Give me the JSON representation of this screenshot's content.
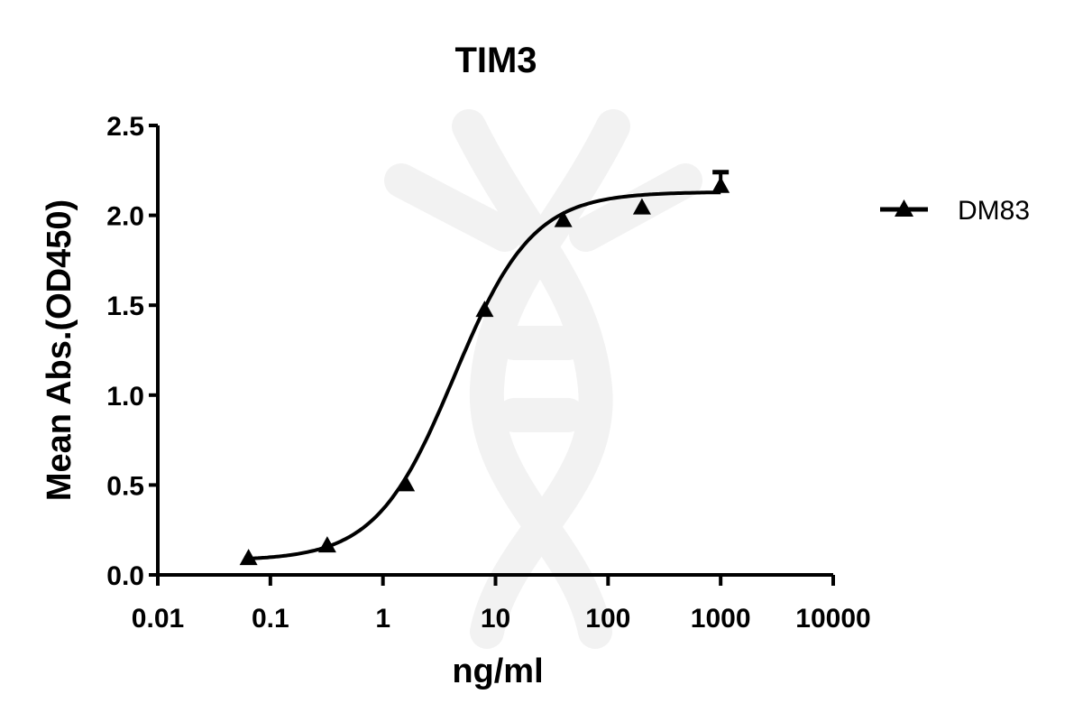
{
  "chart_data": {
    "type": "line",
    "title": "TIM3",
    "xlabel": "ng/ml",
    "ylabel": "Mean Abs.(OD450)",
    "xscale": "log",
    "xlim": [
      0.01,
      10000
    ],
    "ylim": [
      0,
      2.5
    ],
    "xticks": [
      "0.01",
      "0.1",
      "1",
      "10",
      "100",
      "1000",
      "10000"
    ],
    "yticks": [
      "0.0",
      "0.5",
      "1.0",
      "1.5",
      "2.0",
      "2.5"
    ],
    "grid": false,
    "legend_position": "right",
    "series": [
      {
        "name": "DM83",
        "marker": "triangle",
        "x": [
          0.064,
          0.32,
          1.6,
          8,
          40,
          200,
          1000
        ],
        "y": [
          0.09,
          0.16,
          0.5,
          1.47,
          1.97,
          2.04,
          2.16
        ],
        "error": [
          0,
          0,
          0,
          0,
          0,
          0,
          0.08
        ],
        "fit": "4PL sigmoid",
        "fit_params": {
          "bottom": 0.08,
          "top": 2.13,
          "ec50": 4.3,
          "hill": 1.25
        }
      }
    ]
  }
}
